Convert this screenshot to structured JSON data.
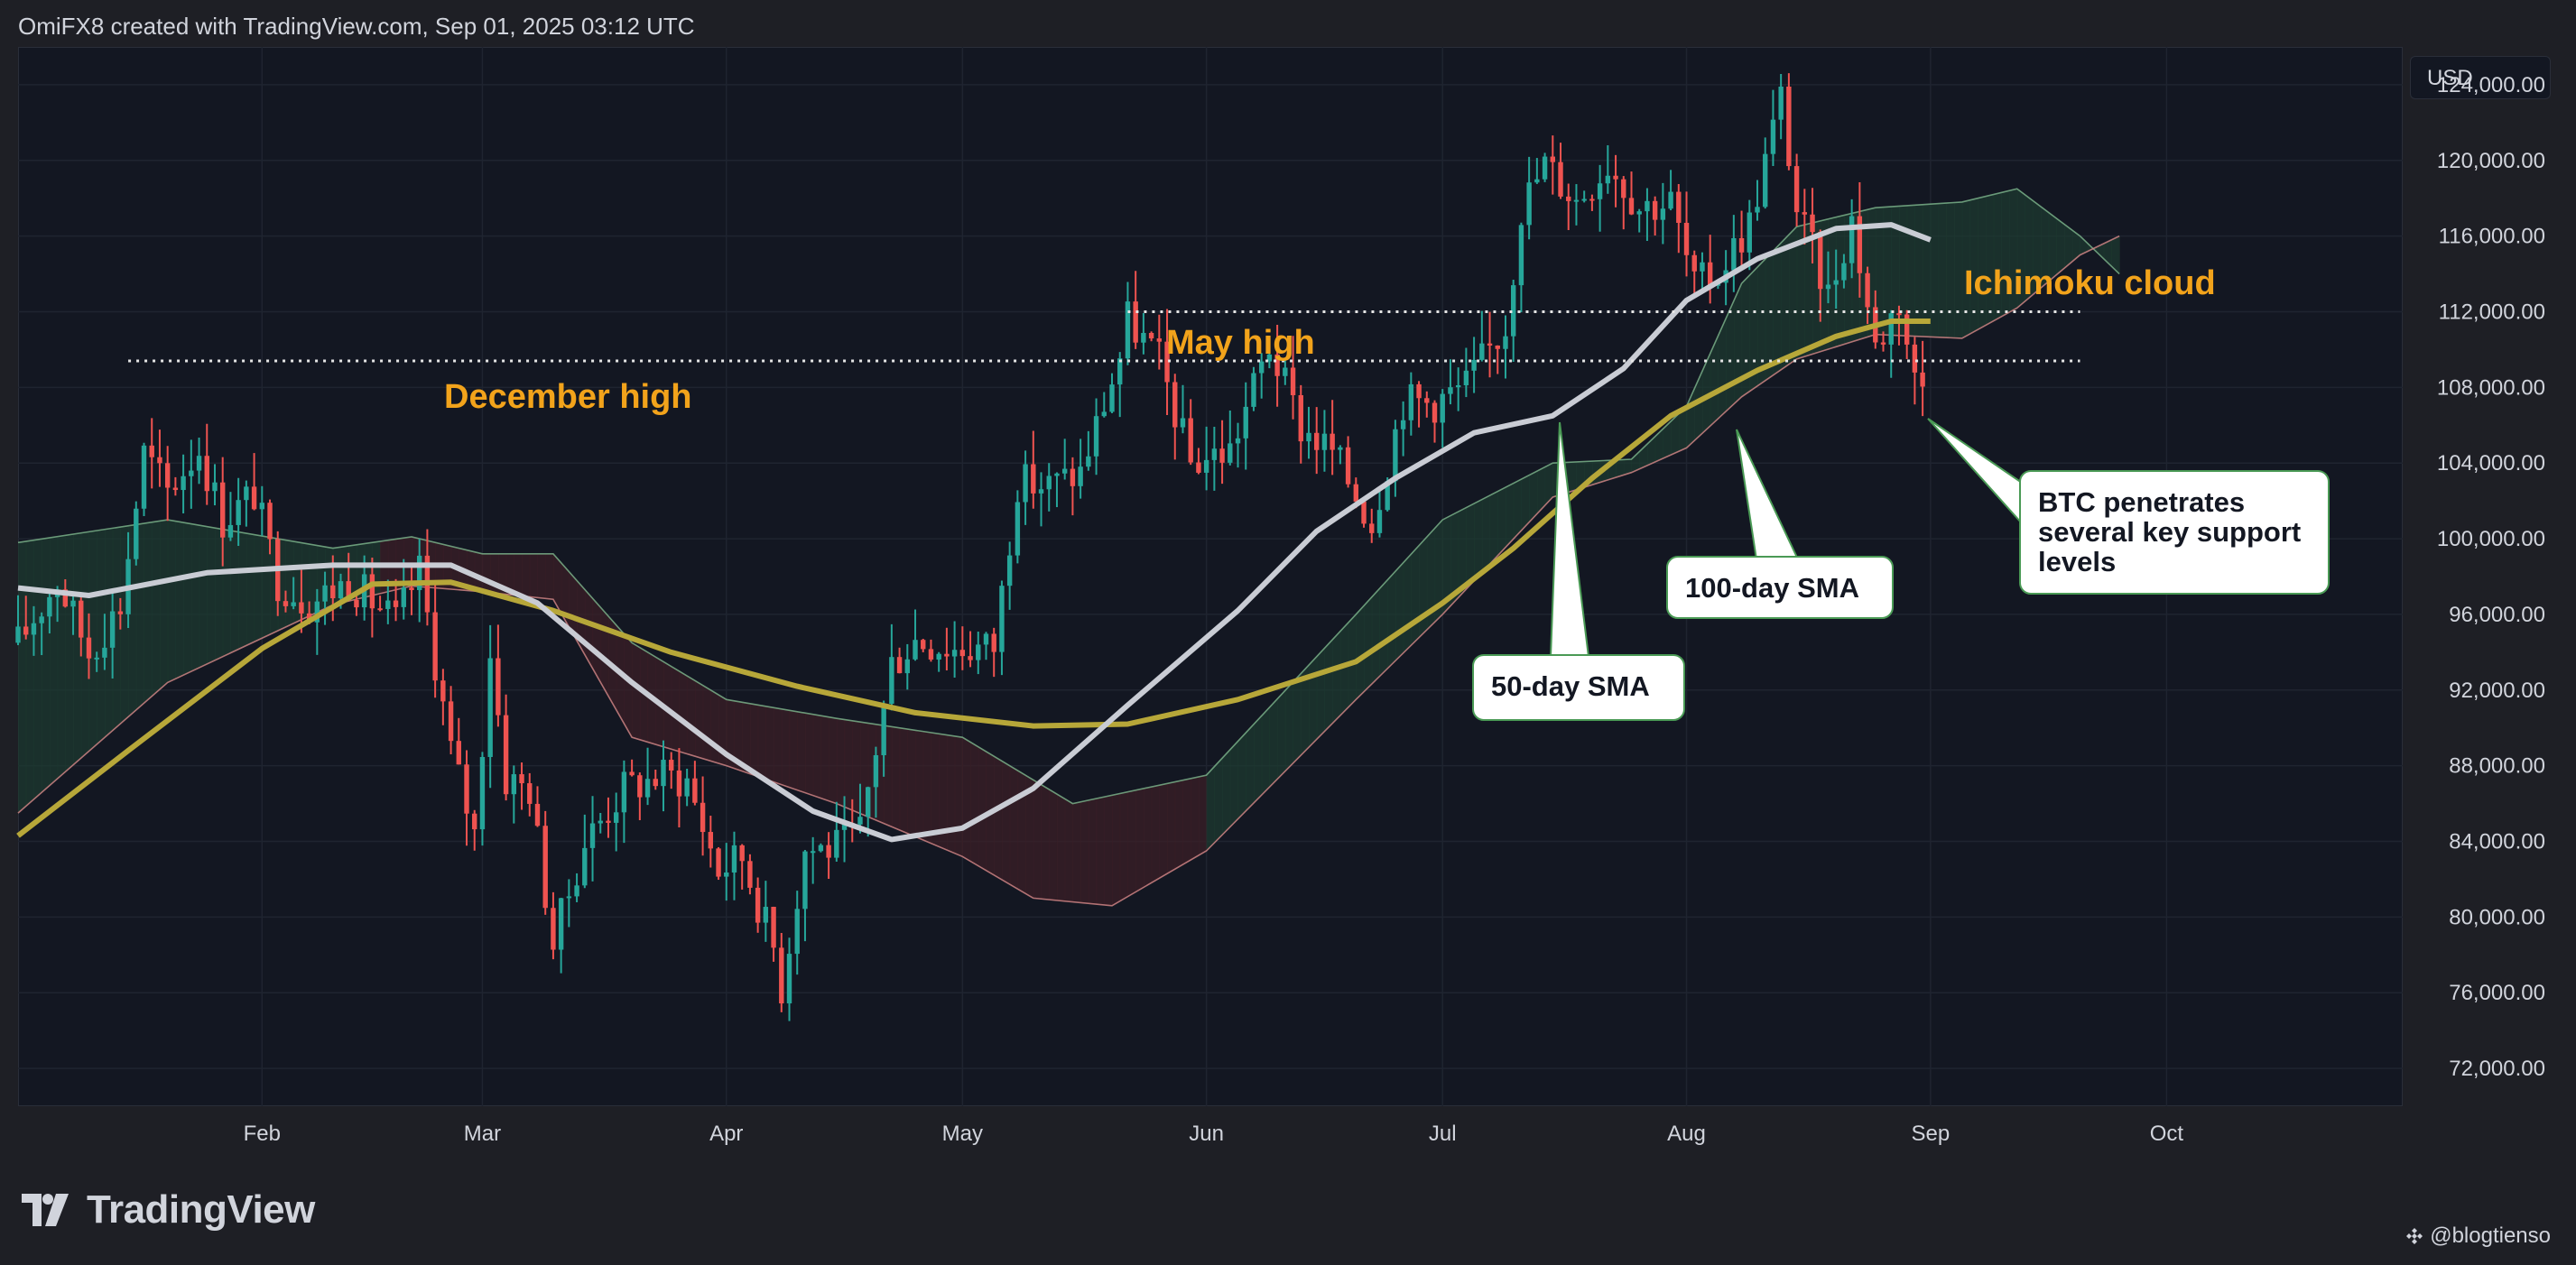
{
  "header": {
    "attribution": "OmiFX8 created with TradingView.com, Sep 01, 2025 03:12 UTC"
  },
  "currency": "USD",
  "brand": {
    "name": "TradingView"
  },
  "credit": {
    "handle": "@blogtienso"
  },
  "colors": {
    "up": "#26a69a",
    "down": "#ef5350",
    "sma50": "#c9ccd4",
    "sma100": "#b7a739",
    "cloud_bull": "#1d3a30",
    "cloud_bear": "#3b1f27",
    "annotation": "#f2a31b"
  },
  "chart_data": {
    "type": "candlestick",
    "x_start": "2025-01-01",
    "x_end": "2025-10-31",
    "ylim": [
      70000,
      126000
    ],
    "y_ticks": [
      72000,
      76000,
      80000,
      84000,
      88000,
      92000,
      96000,
      100000,
      104000,
      108000,
      112000,
      116000,
      120000,
      124000
    ],
    "y_tick_labels": [
      "72,000.00",
      "76,000.00",
      "80,000.00",
      "84,000.00",
      "88,000.00",
      "92,000.00",
      "96,000.00",
      "100,000.00",
      "104,000.00",
      "108,000.00",
      "112,000.00",
      "116,000.00",
      "120,000.00",
      "124,000.00"
    ],
    "x_ticks": [
      {
        "date": "2025-02-01",
        "label": "Feb"
      },
      {
        "date": "2025-03-01",
        "label": "Mar"
      },
      {
        "date": "2025-04-01",
        "label": "Apr"
      },
      {
        "date": "2025-05-01",
        "label": "May"
      },
      {
        "date": "2025-06-01",
        "label": "Jun"
      },
      {
        "date": "2025-07-01",
        "label": "Jul"
      },
      {
        "date": "2025-08-01",
        "label": "Aug"
      },
      {
        "date": "2025-09-01",
        "label": "Sep"
      },
      {
        "date": "2025-10-01",
        "label": "Oct"
      }
    ],
    "grid": true,
    "close_path": [
      [
        "2025-01-01",
        94500
      ],
      [
        "2025-01-06",
        97800
      ],
      [
        "2025-01-10",
        94000
      ],
      [
        "2025-01-14",
        96500
      ],
      [
        "2025-01-17",
        104500
      ],
      [
        "2025-01-20",
        102500
      ],
      [
        "2025-01-24",
        104800
      ],
      [
        "2025-01-27",
        101000
      ],
      [
        "2025-01-31",
        102400
      ],
      [
        "2025-02-03",
        97800
      ],
      [
        "2025-02-07",
        96600
      ],
      [
        "2025-02-12",
        97800
      ],
      [
        "2025-02-18",
        95600
      ],
      [
        "2025-02-21",
        98300
      ],
      [
        "2025-02-25",
        88800
      ],
      [
        "2025-02-28",
        84400
      ],
      [
        "2025-03-02",
        94200
      ],
      [
        "2025-03-04",
        87300
      ],
      [
        "2025-03-07",
        86800
      ],
      [
        "2025-03-10",
        78600
      ],
      [
        "2025-03-14",
        84000
      ],
      [
        "2025-03-19",
        86800
      ],
      [
        "2025-03-24",
        87500
      ],
      [
        "2025-03-27",
        87200
      ],
      [
        "2025-03-31",
        82500
      ],
      [
        "2025-04-03",
        83200
      ],
      [
        "2025-04-07",
        78400
      ],
      [
        "2025-04-08",
        76300
      ],
      [
        "2025-04-11",
        83600
      ],
      [
        "2025-04-15",
        83700
      ],
      [
        "2025-04-18",
        84500
      ],
      [
        "2025-04-22",
        93400
      ],
      [
        "2025-04-25",
        94700
      ],
      [
        "2025-04-30",
        94200
      ],
      [
        "2025-05-05",
        94300
      ],
      [
        "2025-05-08",
        103000
      ],
      [
        "2025-05-12",
        102800
      ],
      [
        "2025-05-16",
        103500
      ],
      [
        "2025-05-21",
        109600
      ],
      [
        "2025-05-22",
        111600
      ],
      [
        "2025-05-26",
        109400
      ],
      [
        "2025-05-30",
        104000
      ],
      [
        "2025-06-04",
        104700
      ],
      [
        "2025-06-09",
        110200
      ],
      [
        "2025-06-13",
        105900
      ],
      [
        "2025-06-17",
        104600
      ],
      [
        "2025-06-22",
        100900
      ],
      [
        "2025-06-26",
        107300
      ],
      [
        "2025-06-30",
        107200
      ],
      [
        "2025-07-04",
        108100
      ],
      [
        "2025-07-09",
        111300
      ],
      [
        "2025-07-11",
        117500
      ],
      [
        "2025-07-14",
        119800
      ],
      [
        "2025-07-18",
        117900
      ],
      [
        "2025-07-22",
        119900
      ],
      [
        "2025-07-26",
        117600
      ],
      [
        "2025-07-30",
        117800
      ],
      [
        "2025-08-02",
        113300
      ],
      [
        "2025-08-05",
        114100
      ],
      [
        "2025-08-09",
        116700
      ],
      [
        "2025-08-13",
        123300
      ],
      [
        "2025-08-15",
        117400
      ],
      [
        "2025-08-19",
        112900
      ],
      [
        "2025-08-22",
        116900
      ],
      [
        "2025-08-25",
        110100
      ],
      [
        "2025-08-28",
        112600
      ],
      [
        "2025-08-30",
        108400
      ],
      [
        "2025-08-31",
        108200
      ]
    ],
    "sma50": [
      [
        "2025-01-01",
        97400
      ],
      [
        "2025-01-10",
        97000
      ],
      [
        "2025-01-25",
        98200
      ],
      [
        "2025-02-10",
        98600
      ],
      [
        "2025-02-25",
        98600
      ],
      [
        "2025-03-08",
        96600
      ],
      [
        "2025-03-20",
        92400
      ],
      [
        "2025-04-01",
        88600
      ],
      [
        "2025-04-12",
        85600
      ],
      [
        "2025-04-22",
        84100
      ],
      [
        "2025-05-01",
        84700
      ],
      [
        "2025-05-10",
        86800
      ],
      [
        "2025-05-22",
        91200
      ],
      [
        "2025-06-05",
        96200
      ],
      [
        "2025-06-15",
        100400
      ],
      [
        "2025-06-25",
        103200
      ],
      [
        "2025-07-05",
        105600
      ],
      [
        "2025-07-15",
        106500
      ],
      [
        "2025-07-24",
        109000
      ],
      [
        "2025-08-01",
        112600
      ],
      [
        "2025-08-10",
        114800
      ],
      [
        "2025-08-20",
        116400
      ],
      [
        "2025-08-27",
        116600
      ],
      [
        "2025-09-01",
        115800
      ]
    ],
    "sma100": [
      [
        "2025-01-01",
        84300
      ],
      [
        "2025-01-15",
        88800
      ],
      [
        "2025-02-01",
        94200
      ],
      [
        "2025-02-15",
        97600
      ],
      [
        "2025-02-25",
        97700
      ],
      [
        "2025-03-10",
        96200
      ],
      [
        "2025-03-25",
        94000
      ],
      [
        "2025-04-10",
        92200
      ],
      [
        "2025-04-25",
        90800
      ],
      [
        "2025-05-10",
        90100
      ],
      [
        "2025-05-22",
        90200
      ],
      [
        "2025-06-05",
        91500
      ],
      [
        "2025-06-20",
        93500
      ],
      [
        "2025-07-01",
        96600
      ],
      [
        "2025-07-10",
        99500
      ],
      [
        "2025-07-20",
        103200
      ],
      [
        "2025-07-30",
        106500
      ],
      [
        "2025-08-10",
        108900
      ],
      [
        "2025-08-20",
        110700
      ],
      [
        "2025-08-27",
        111500
      ],
      [
        "2025-09-01",
        111500
      ]
    ],
    "cloud_upper": [
      [
        "2025-01-01",
        99800
      ],
      [
        "2025-01-20",
        101000
      ],
      [
        "2025-02-10",
        99500
      ],
      [
        "2025-02-20",
        100100
      ],
      [
        "2025-03-01",
        99200
      ],
      [
        "2025-03-10",
        99200
      ],
      [
        "2025-03-20",
        94500
      ],
      [
        "2025-04-01",
        91500
      ],
      [
        "2025-04-15",
        90500
      ],
      [
        "2025-05-01",
        89500
      ],
      [
        "2025-05-15",
        86000
      ],
      [
        "2025-06-01",
        87500
      ],
      [
        "2025-06-20",
        96000
      ],
      [
        "2025-07-01",
        101000
      ],
      [
        "2025-07-15",
        104000
      ],
      [
        "2025-07-25",
        104200
      ],
      [
        "2025-08-01",
        107000
      ],
      [
        "2025-08-08",
        113500
      ],
      [
        "2025-08-15",
        116500
      ],
      [
        "2025-08-25",
        117500
      ],
      [
        "2025-09-05",
        117800
      ],
      [
        "2025-09-12",
        118500
      ],
      [
        "2025-09-20",
        116000
      ],
      [
        "2025-09-25",
        114000
      ]
    ],
    "cloud_lower": [
      [
        "2025-01-01",
        85500
      ],
      [
        "2025-01-20",
        92400
      ],
      [
        "2025-02-10",
        96500
      ],
      [
        "2025-02-20",
        97500
      ],
      [
        "2025-03-01",
        97200
      ],
      [
        "2025-03-10",
        96800
      ],
      [
        "2025-03-20",
        89500
      ],
      [
        "2025-04-01",
        88000
      ],
      [
        "2025-04-15",
        86000
      ],
      [
        "2025-05-01",
        83200
      ],
      [
        "2025-05-10",
        81000
      ],
      [
        "2025-05-20",
        80600
      ],
      [
        "2025-06-01",
        83500
      ],
      [
        "2025-06-20",
        91500
      ],
      [
        "2025-07-01",
        96000
      ],
      [
        "2025-07-15",
        102200
      ],
      [
        "2025-07-25",
        103500
      ],
      [
        "2025-08-01",
        104800
      ],
      [
        "2025-08-08",
        107500
      ],
      [
        "2025-08-15",
        109500
      ],
      [
        "2025-08-25",
        110800
      ],
      [
        "2025-09-05",
        110600
      ],
      [
        "2025-09-12",
        112200
      ],
      [
        "2025-09-20",
        115000
      ],
      [
        "2025-09-25",
        116000
      ]
    ],
    "levels": [
      {
        "name": "December high",
        "value": 109400,
        "from": "2025-01-15",
        "to": "2025-09-20"
      },
      {
        "name": "May high",
        "value": 112000,
        "from": "2025-05-22",
        "to": "2025-09-20"
      }
    ],
    "annotations": [
      {
        "text": "December high",
        "type": "label"
      },
      {
        "text": "May high",
        "type": "label"
      },
      {
        "text": "Ichimoku cloud",
        "type": "label"
      },
      {
        "text": "50-day SMA",
        "type": "callout"
      },
      {
        "text": "100-day SMA",
        "type": "callout"
      },
      {
        "text": "BTC penetrates several key support levels",
        "lines": [
          "BTC penetrates",
          "several key support",
          "levels"
        ],
        "type": "callout"
      }
    ]
  }
}
